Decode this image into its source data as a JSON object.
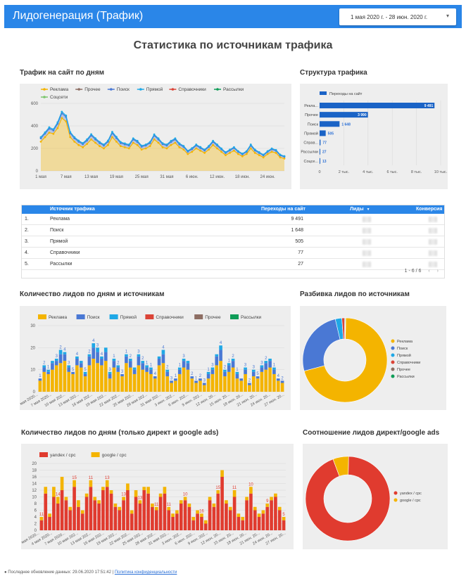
{
  "header": {
    "title": "Лидогенерация  (Трафик)",
    "date_range": "1 мая 2020 г. - 28 июн. 2020 г.",
    "caret": "▾"
  },
  "page_title": "Статистика по источникам трафика",
  "titles": {
    "traffic_by_day": "Трафик на сайт по дням",
    "traffic_structure": "Структура трафика",
    "leads_by_day_source": "Количество лидов по дням и источникам",
    "leads_breakdown": "Разбивка лидов по источникам",
    "leads_direct_ads": "Количество лидов по дням (только директ и google ads)",
    "ratio_direct_ads": "Соотношение лидов директ/google ads"
  },
  "colors": {
    "accent": "#2a86e8",
    "reklama": "#f4b400",
    "prochee": "#8d6e63",
    "poisk": "#4a78d4",
    "pryamoy": "#1fa8e6",
    "spravochniki": "#db4437",
    "rassylki": "#0f9d58",
    "sotsseti": "#7cc66e",
    "bar_blue": "#1a63c6",
    "yandex": "#e03b2f",
    "google": "#f4b400"
  },
  "table": {
    "headers": {
      "source": "Источник трафика",
      "visits": "Переходы на сайт",
      "leads": "Лиды",
      "sort_icon": "▼",
      "conversion": "Конверсия"
    },
    "rows": [
      {
        "n": "1.",
        "source": "Реклама",
        "visits": "9 491"
      },
      {
        "n": "2.",
        "source": "Поиск",
        "visits": "1 648"
      },
      {
        "n": "3.",
        "source": "Прямой",
        "visits": "505"
      },
      {
        "n": "4.",
        "source": "Справочники",
        "visits": "77"
      },
      {
        "n": "5.",
        "source": "Рассылки",
        "visits": "27"
      }
    ],
    "pager": "1 - 6 / 6"
  },
  "footer": {
    "updated": "Последнее обновление данных: 29.06.2020 17:51:42",
    "sep": "|",
    "privacy": "Политика конфиденциальности"
  },
  "chart_data": [
    {
      "id": "traffic_by_day",
      "type": "area",
      "title": "Трафик на сайт по дням",
      "legend_placement": "top",
      "series_names": [
        "Реклама",
        "Прочее",
        "Поиск",
        "Прямой",
        "Справочники",
        "Рассылки",
        "Соцсети"
      ],
      "x_tick_labels": [
        "1 мая",
        "7 мая",
        "13 мая",
        "19 мая",
        "25 мая",
        "31 мая",
        "6 июн.",
        "12 июн.",
        "18 июн.",
        "24 июн."
      ],
      "y_ticks": [
        0,
        200,
        400,
        600
      ],
      "ylim": [
        0,
        600
      ],
      "grid": true,
      "series": [
        {
          "name": "Реклама",
          "values": [
            260,
            300,
            340,
            330,
            380,
            470,
            440,
            300,
            260,
            230,
            210,
            240,
            280,
            250,
            220,
            200,
            230,
            300,
            260,
            220,
            210,
            200,
            250,
            230,
            190,
            200,
            220,
            280,
            250,
            210,
            200,
            230,
            250,
            210,
            190,
            150,
            170,
            200,
            180,
            160,
            190,
            230,
            200,
            170,
            140,
            160,
            180,
            150,
            130,
            150,
            200,
            160,
            140,
            120,
            150,
            170,
            160,
            120,
            110
          ]
        },
        {
          "name": "Поиск",
          "values": [
            30,
            32,
            35,
            30,
            40,
            42,
            40,
            35,
            30,
            30,
            28,
            30,
            35,
            30,
            28,
            26,
            30,
            36,
            32,
            28,
            26,
            26,
            30,
            28,
            26,
            26,
            28,
            34,
            30,
            28,
            26,
            28,
            30,
            26,
            24,
            22,
            24,
            26,
            24,
            22,
            24,
            28,
            26,
            22,
            20,
            22,
            24,
            20,
            18,
            20,
            26,
            22,
            20,
            18,
            20,
            22,
            20,
            18,
            16
          ]
        },
        {
          "name": "Прямой",
          "values": [
            10,
            10,
            12,
            10,
            12,
            14,
            12,
            10,
            10,
            9,
            9,
            10,
            11,
            10,
            9,
            8,
            9,
            11,
            10,
            9,
            8,
            8,
            9,
            9,
            8,
            8,
            9,
            10,
            9,
            8,
            8,
            9,
            9,
            8,
            8,
            7,
            8,
            8,
            8,
            7,
            8,
            9,
            8,
            7,
            6,
            7,
            7,
            6,
            6,
            6,
            8,
            7,
            6,
            6,
            6,
            7,
            6,
            6,
            5
          ]
        }
      ]
    },
    {
      "id": "traffic_structure",
      "type": "bar",
      "orientation": "horizontal",
      "title": "Структура трафика",
      "legend": "Переходы на сайт",
      "categories": [
        "Рекла...",
        "Прочее",
        "Поиск",
        "Прямой",
        "Справ...",
        "Рассылки",
        "Соцсе..."
      ],
      "values": [
        9491,
        3990,
        1648,
        505,
        77,
        27,
        13
      ],
      "value_labels": [
        "9 491",
        "3 990",
        "1 648",
        "505",
        "77",
        "27",
        "13"
      ],
      "x_ticks": [
        "0",
        "2 тыс.",
        "4 тыс.",
        "6 тыс.",
        "8 тыс.",
        "10 тыс."
      ],
      "xlim": [
        0,
        10000
      ]
    },
    {
      "id": "leads_by_day_source",
      "type": "bar",
      "stacked": true,
      "title": "Количество лидов по дням и источникам",
      "legend": [
        "Реклама",
        "Поиск",
        "Прямой",
        "Справочники",
        "Прочее",
        "Рассылки"
      ],
      "y_ticks": [
        0,
        10,
        20,
        30
      ],
      "ylim": [
        0,
        30
      ],
      "x_tick_labels": [
        "1 мая 2020...",
        "7 мая 2020...",
        "10 мая 202...",
        "13 мая 202...",
        "16 мая 202...",
        "19 мая 202...",
        "22 мая 202...",
        "25 мая 202...",
        "28 мая 202...",
        "31 мая 202...",
        "3 июн. 202...",
        "6 июн. 202...",
        "9 июн. 202...",
        "12 июн. 20...",
        "15 июн. 20...",
        "18 июн. 20...",
        "21 июн. 20...",
        "24 июн. 20...",
        "27 июн. 20..."
      ],
      "series": [
        {
          "name": "Реклама",
          "values": [
            5,
            9,
            8,
            10,
            12,
            13,
            14,
            9,
            8,
            12,
            11,
            7,
            12,
            15,
            13,
            12,
            14,
            6,
            11,
            9,
            7,
            13,
            11,
            8,
            12,
            10,
            9,
            8,
            6,
            12,
            13,
            7,
            4,
            5,
            8,
            11,
            10,
            6,
            4,
            5,
            3,
            6,
            8,
            12,
            14,
            7,
            9,
            11,
            6,
            5,
            8,
            3,
            7,
            6,
            9,
            10,
            11,
            8,
            5,
            4
          ]
        },
        {
          "name": "Поиск",
          "values": [
            1,
            2,
            1,
            3,
            2,
            4,
            3,
            2,
            1,
            3,
            2,
            1,
            4,
            5,
            5,
            3,
            4,
            2,
            3,
            2,
            1,
            3,
            3,
            2,
            4,
            3,
            2,
            2,
            1,
            3,
            4,
            2,
            1,
            1,
            2,
            3,
            3,
            1,
            1,
            1,
            1,
            2,
            2,
            4,
            5,
            2,
            3,
            3,
            2,
            1,
            2,
            1,
            2,
            1,
            2,
            3,
            3,
            2,
            1,
            1
          ]
        },
        {
          "name": "Прямой",
          "values": [
            0,
            1,
            1,
            1,
            1,
            2,
            1,
            1,
            0,
            1,
            1,
            1,
            1,
            2,
            2,
            1,
            2,
            1,
            1,
            1,
            0,
            1,
            1,
            1,
            1,
            1,
            1,
            1,
            0,
            1,
            2,
            1,
            0,
            0,
            1,
            1,
            1,
            0,
            0,
            0,
            0,
            1,
            1,
            1,
            2,
            1,
            1,
            1,
            1,
            0,
            1,
            0,
            1,
            0,
            1,
            1,
            1,
            1,
            0,
            0
          ]
        }
      ],
      "data_labels": [
        "1",
        "2",
        "1",
        "3",
        "2",
        "4",
        "3",
        "5",
        "4",
        "5",
        "2",
        "4",
        "3",
        "4",
        "3",
        "1",
        "2",
        "3",
        "1",
        "2",
        "3",
        "2",
        "1",
        "1",
        "4",
        "4",
        "2",
        "3",
        "1",
        "1",
        "3",
        "2",
        "1",
        "2",
        "3",
        "1",
        "3",
        "4",
        "2",
        "1",
        "2",
        "1",
        "3",
        "2",
        "3",
        "5",
        "3",
        "2",
        "1",
        "4",
        "2"
      ]
    },
    {
      "id": "leads_breakdown",
      "type": "pie",
      "donut": true,
      "title": "Разбивка лидов по источникам",
      "legend_placement": "right",
      "labels": [
        "Реклама",
        "Поиск",
        "Прямой",
        "Справочники",
        "Прочее",
        "Рассылки"
      ],
      "values": [
        70.5,
        25.5,
        2.5,
        1.0,
        0.3,
        0.2
      ]
    },
    {
      "id": "leads_direct_ads",
      "type": "bar",
      "stacked": true,
      "title": "Количество лидов по дням (только директ и google ads)",
      "legend": [
        "yandex / cpc",
        "google / cpc"
      ],
      "y_ticks": [
        0,
        2,
        4,
        6,
        8,
        10,
        12,
        14,
        16,
        18,
        20
      ],
      "ylim": [
        0,
        20
      ],
      "x_tick_labels": [
        "1 мая 2020...",
        "4 мая 2020...",
        "7 мая 2020...",
        "10 мая 202...",
        "13 мая 202...",
        "16 мая 202...",
        "19 мая 202...",
        "22 мая 202...",
        "25 мая 202...",
        "28 мая 202...",
        "31 мая 202...",
        "3 июн. 202...",
        "6 июн. 202...",
        "9 июн. 202...",
        "12 июн. 20...",
        "15 июн. 20...",
        "18 июн. 20...",
        "21 июн. 20...",
        "24 июн. 20...",
        "27 июн. 20..."
      ],
      "series": [
        {
          "name": "yandex / cpc",
          "values": [
            3,
            11,
            4,
            10,
            8,
            12,
            9,
            6,
            13,
            7,
            5,
            10,
            13,
            9,
            8,
            12,
            13,
            11,
            7,
            6,
            9,
            12,
            5,
            10,
            8,
            12,
            11,
            7,
            6,
            10,
            11,
            6,
            4,
            5,
            8,
            9,
            7,
            3,
            5,
            4,
            2,
            9,
            7,
            11,
            16,
            8,
            6,
            10,
            4,
            3,
            9,
            11,
            6,
            4,
            5,
            7,
            9,
            10,
            6,
            3
          ]
        },
        {
          "name": "google / cpc",
          "values": [
            1,
            2,
            1,
            3,
            2,
            4,
            1,
            1,
            2,
            2,
            1,
            1,
            2,
            1,
            1,
            1,
            2,
            1,
            1,
            1,
            1,
            2,
            1,
            2,
            1,
            1,
            2,
            1,
            1,
            1,
            2,
            1,
            1,
            1,
            1,
            1,
            1,
            1,
            1,
            1,
            1,
            1,
            1,
            1,
            2,
            1,
            1,
            2,
            1,
            1,
            1,
            2,
            1,
            1,
            1,
            1,
            1,
            1,
            1,
            1
          ]
        }
      ],
      "data_labels": [
        "11",
        "14",
        "15",
        "11",
        "13",
        "13",
        "13",
        "11",
        "11",
        "10",
        "16",
        "15",
        "11",
        "10",
        "9",
        "5"
      ]
    },
    {
      "id": "ratio_direct_ads",
      "type": "pie",
      "donut": true,
      "title": "Соотношение лидов директ/google ads",
      "legend_placement": "right",
      "labels": [
        "yandex / cpc",
        "google / cpc"
      ],
      "values": [
        94,
        6
      ]
    }
  ]
}
